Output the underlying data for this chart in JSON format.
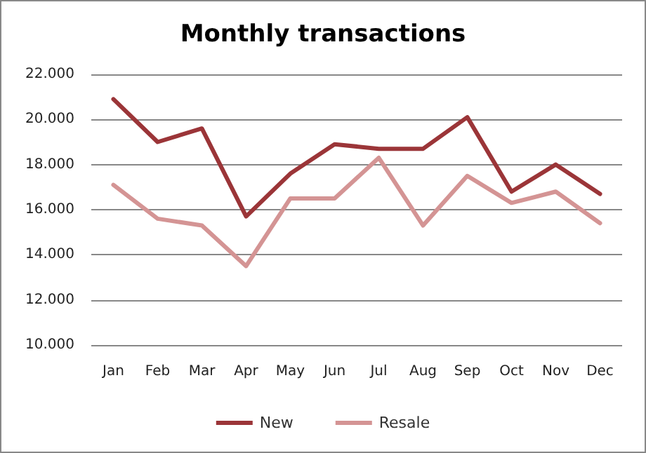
{
  "chart_data": {
    "type": "line",
    "title": "Monthly transactions",
    "categories": [
      "Jan",
      "Feb",
      "Mar",
      "Apr",
      "May",
      "Jun",
      "Jul",
      "Aug",
      "Sep",
      "Oct",
      "Nov",
      "Dec"
    ],
    "series": [
      {
        "name": "New",
        "color": "#9b3538",
        "values": [
          20900,
          19000,
          19600,
          15700,
          17600,
          18900,
          18700,
          18700,
          20100,
          16800,
          18000,
          16700
        ]
      },
      {
        "name": "Resale",
        "color": "#d49494",
        "values": [
          17100,
          15600,
          15300,
          13500,
          16500,
          16500,
          18300,
          15300,
          17500,
          16300,
          16800,
          15400
        ]
      }
    ],
    "ylim": [
      10000,
      22000
    ],
    "yticks": [
      {
        "value": 10000,
        "label": "10.000"
      },
      {
        "value": 12000,
        "label": "12.000"
      },
      {
        "value": 14000,
        "label": "14.000"
      },
      {
        "value": 16000,
        "label": "16.000"
      },
      {
        "value": 18000,
        "label": "18.000"
      },
      {
        "value": 20000,
        "label": "20.000"
      },
      {
        "value": 22000,
        "label": "22.000"
      }
    ],
    "grid": "y",
    "legend": "bottom",
    "marker": "none",
    "line_style": "solid"
  }
}
